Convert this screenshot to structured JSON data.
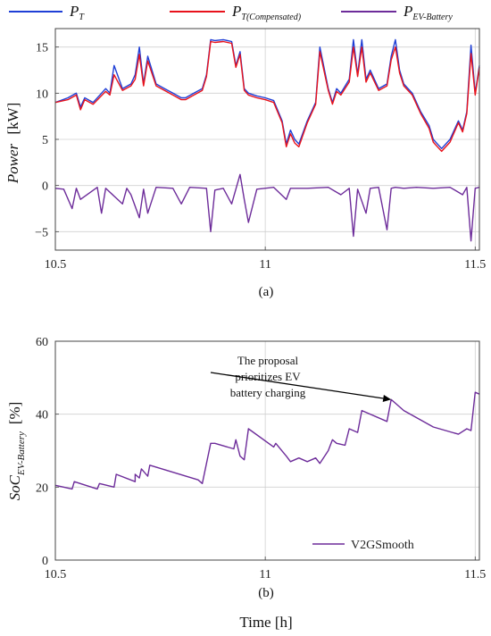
{
  "chart_data": [
    {
      "type": "line",
      "caption": "(a)",
      "ylabel": {
        "main": "Power",
        "unit": "[kW]"
      },
      "xlim": [
        10.5,
        11.51
      ],
      "ylim": [
        -7,
        17
      ],
      "x_ticks": [
        10.5,
        11,
        11.5
      ],
      "x_tick_labels": [
        "10.5",
        "11",
        "11.5"
      ],
      "y_ticks": [
        -5,
        0,
        5,
        10,
        15
      ],
      "y_tick_labels": [
        "−5",
        "0",
        "5",
        "10",
        "15"
      ],
      "grid": true,
      "legend": {
        "placement": "top, above plot",
        "entries": [
          {
            "name": "P",
            "sub": "T",
            "color": "#1f3fd6"
          },
          {
            "name": "P",
            "sub": "T(Compensated)",
            "color": "#e8121b"
          },
          {
            "name": "P",
            "sub": "EV-Battery",
            "color": "#6d2c9a"
          }
        ]
      },
      "series": [
        {
          "name": "P_T",
          "color": "#1f3fd6",
          "x": [
            10.5,
            10.53,
            10.55,
            10.56,
            10.57,
            10.59,
            10.62,
            10.63,
            10.64,
            10.66,
            10.68,
            10.69,
            10.7,
            10.71,
            10.72,
            10.74,
            10.76,
            10.78,
            10.8,
            10.81,
            10.83,
            10.85,
            10.86,
            10.87,
            10.88,
            10.9,
            10.92,
            10.93,
            10.94,
            10.95,
            10.96,
            10.98,
            11.0,
            11.02,
            11.04,
            11.05,
            11.06,
            11.07,
            11.08,
            11.1,
            11.11,
            11.12,
            11.13,
            11.15,
            11.16,
            11.17,
            11.18,
            11.2,
            11.21,
            11.22,
            11.23,
            11.24,
            11.25,
            11.27,
            11.29,
            11.3,
            11.31,
            11.32,
            11.33,
            11.35,
            11.37,
            11.39,
            11.4,
            11.41,
            11.42,
            11.44,
            11.46,
            11.47,
            11.48,
            11.49,
            11.5,
            11.51
          ],
          "y": [
            9,
            9.5,
            10,
            8.5,
            9.5,
            9,
            10.5,
            10,
            13,
            10.5,
            11,
            12,
            15,
            11,
            14,
            11,
            10.5,
            10,
            9.5,
            9.5,
            10,
            10.5,
            12,
            15.8,
            15.7,
            15.8,
            15.6,
            13,
            14.5,
            10.5,
            10,
            9.7,
            9.5,
            9.2,
            7,
            4.5,
            6,
            5,
            4.5,
            7,
            8,
            9,
            15,
            10.5,
            9,
            10.5,
            10,
            11.5,
            15.8,
            12,
            15.8,
            11.5,
            12.5,
            10.5,
            11,
            14,
            15.8,
            12.5,
            11,
            10,
            8,
            6.5,
            5,
            4.5,
            4,
            5,
            7,
            6,
            8,
            15.2,
            10,
            13
          ]
        },
        {
          "name": "P_T(Compensated)",
          "color": "#e8121b",
          "x": [
            10.5,
            10.53,
            10.55,
            10.56,
            10.57,
            10.59,
            10.62,
            10.63,
            10.64,
            10.66,
            10.68,
            10.69,
            10.7,
            10.71,
            10.72,
            10.74,
            10.76,
            10.78,
            10.8,
            10.81,
            10.83,
            10.85,
            10.86,
            10.87,
            10.88,
            10.9,
            10.92,
            10.93,
            10.94,
            10.95,
            10.96,
            10.98,
            11.0,
            11.02,
            11.04,
            11.05,
            11.06,
            11.07,
            11.08,
            11.1,
            11.11,
            11.12,
            11.13,
            11.15,
            11.16,
            11.17,
            11.18,
            11.2,
            11.21,
            11.22,
            11.23,
            11.24,
            11.25,
            11.27,
            11.29,
            11.3,
            11.31,
            11.32,
            11.33,
            11.35,
            11.37,
            11.39,
            11.4,
            11.41,
            11.42,
            11.44,
            11.46,
            11.47,
            11.48,
            11.49,
            11.5,
            11.51
          ],
          "y": [
            9,
            9.3,
            9.8,
            8.2,
            9.3,
            8.8,
            10.2,
            9.8,
            12,
            10.3,
            10.8,
            11.5,
            14.2,
            10.8,
            13.5,
            10.8,
            10.3,
            9.8,
            9.3,
            9.3,
            9.8,
            10.3,
            11.8,
            15.6,
            15.5,
            15.6,
            15.4,
            12.8,
            14.2,
            10.3,
            9.8,
            9.5,
            9.3,
            9,
            6.8,
            4.2,
            5.6,
            4.6,
            4.2,
            6.8,
            7.8,
            8.8,
            14.5,
            10.3,
            8.8,
            10.2,
            9.8,
            11.2,
            15,
            11.8,
            15,
            11.2,
            12.2,
            10.3,
            10.8,
            13.6,
            15,
            12.2,
            10.8,
            9.8,
            7.8,
            6.2,
            4.7,
            4.2,
            3.7,
            4.7,
            6.8,
            5.8,
            7.8,
            14.3,
            9.8,
            12.8
          ]
        },
        {
          "name": "P_EV-Battery",
          "color": "#6d2c9a",
          "x": [
            10.5,
            10.52,
            10.54,
            10.55,
            10.56,
            10.6,
            10.61,
            10.62,
            10.66,
            10.67,
            10.68,
            10.7,
            10.71,
            10.72,
            10.74,
            10.78,
            10.8,
            10.82,
            10.86,
            10.87,
            10.88,
            10.9,
            10.92,
            10.94,
            10.95,
            10.96,
            10.98,
            11.02,
            11.05,
            11.06,
            11.1,
            11.15,
            11.18,
            11.2,
            11.21,
            11.22,
            11.24,
            11.25,
            11.27,
            11.29,
            11.3,
            11.31,
            11.33,
            11.36,
            11.4,
            11.44,
            11.47,
            11.48,
            11.49,
            11.5,
            11.51
          ],
          "y": [
            -0.3,
            -0.4,
            -2.5,
            -0.3,
            -1.5,
            -0.2,
            -3,
            -0.3,
            -2,
            -0.3,
            -1,
            -3.5,
            -0.4,
            -3,
            -0.2,
            -0.3,
            -2,
            -0.2,
            -0.3,
            -5,
            -0.5,
            -0.3,
            -2,
            1.2,
            -1.5,
            -4,
            -0.4,
            -0.2,
            -1.5,
            -0.3,
            -0.3,
            -0.2,
            -1,
            -0.3,
            -5.5,
            -0.4,
            -3,
            -0.3,
            -0.2,
            -4.8,
            -0.3,
            -0.2,
            -0.3,
            -0.2,
            -0.3,
            -0.2,
            -1,
            -0.2,
            -6,
            -0.3,
            -0.2
          ]
        }
      ]
    },
    {
      "type": "line",
      "caption": "(b)",
      "xlabel": "Time [h]",
      "ylabel": {
        "main": "SoC",
        "sub": "EV-Battery",
        "unit": "[%]"
      },
      "xlim": [
        10.5,
        11.51
      ],
      "ylim": [
        0,
        60
      ],
      "x_ticks": [
        10.5,
        11,
        11.5
      ],
      "x_tick_labels": [
        "10.5",
        "11",
        "11.5"
      ],
      "y_ticks": [
        0,
        20,
        40,
        60
      ],
      "y_tick_labels": [
        "0",
        "20",
        "40",
        "60"
      ],
      "grid": true,
      "legend": {
        "placement": "bottom-right",
        "entries": [
          {
            "name": "V2GSmooth",
            "color": "#6d2c9a"
          }
        ]
      },
      "annotation": {
        "lines": [
          "The proposal",
          "prioritizes EV",
          "battery charging"
        ],
        "arrow_to": {
          "x": 11.3,
          "y": 44
        }
      },
      "series": [
        {
          "name": "V2GSmooth",
          "color": "#6d2c9a",
          "x": [
            10.5,
            10.54,
            10.545,
            10.6,
            10.605,
            10.64,
            10.645,
            10.69,
            10.69,
            10.7,
            10.705,
            10.72,
            10.725,
            10.84,
            10.85,
            10.87,
            10.88,
            10.925,
            10.93,
            10.94,
            10.95,
            10.96,
            11.02,
            11.025,
            11.05,
            11.06,
            11.08,
            11.1,
            11.12,
            11.13,
            11.15,
            11.16,
            11.17,
            11.19,
            11.2,
            11.22,
            11.23,
            11.29,
            11.3,
            11.31,
            11.33,
            11.4,
            11.46,
            11.48,
            11.49,
            11.5,
            11.51
          ],
          "y": [
            20.5,
            19.5,
            21.5,
            19.5,
            21,
            20,
            23.5,
            21.5,
            23.5,
            22.5,
            25,
            23,
            26,
            22,
            21,
            32,
            32,
            30.5,
            33,
            28.5,
            27.5,
            36,
            31,
            32,
            28.5,
            27,
            28,
            27,
            28,
            26.5,
            30,
            33,
            32,
            31.5,
            36,
            35,
            41,
            38,
            44,
            43,
            41,
            36.5,
            34.5,
            36,
            35.5,
            46,
            45.5
          ]
        }
      ]
    }
  ]
}
